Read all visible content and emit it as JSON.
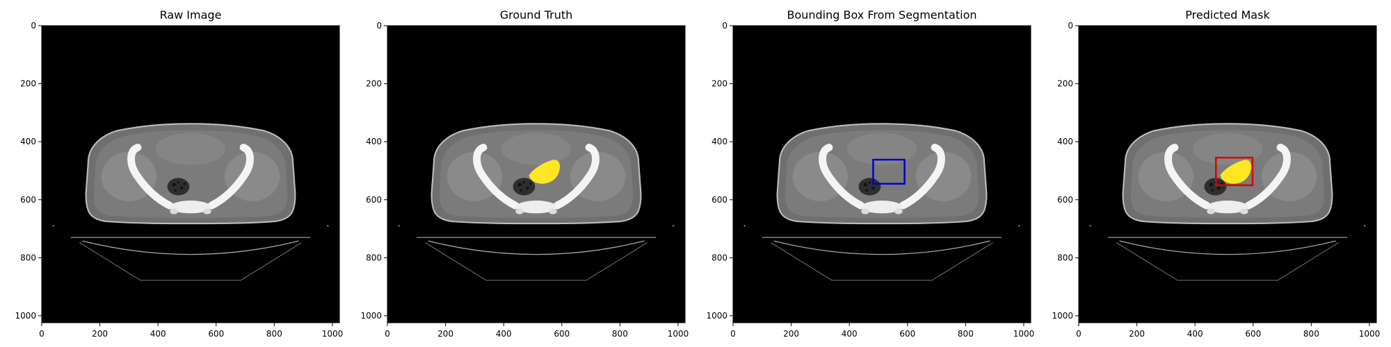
{
  "panels": [
    {
      "title": "Raw Image",
      "overlay": "none"
    },
    {
      "title": "Ground Truth",
      "overlay": "mask"
    },
    {
      "title": "Bounding Box From Segmentation",
      "overlay": "box"
    },
    {
      "title": "Predicted Mask",
      "overlay": "mask+box"
    }
  ],
  "axis": {
    "x_ticks": [
      0,
      200,
      400,
      600,
      800,
      1000
    ],
    "y_ticks": [
      0,
      200,
      400,
      600,
      800,
      1000
    ],
    "range": [
      0,
      1024
    ]
  },
  "colors": {
    "mask": "#fde725",
    "gt_box": "#0000cc",
    "pred_box": "#e00000",
    "background": "#000000"
  },
  "segmentation": {
    "gt_bbox": [
      482,
      462,
      590,
      545
    ],
    "pred_bbox": [
      472,
      455,
      598,
      550
    ]
  }
}
